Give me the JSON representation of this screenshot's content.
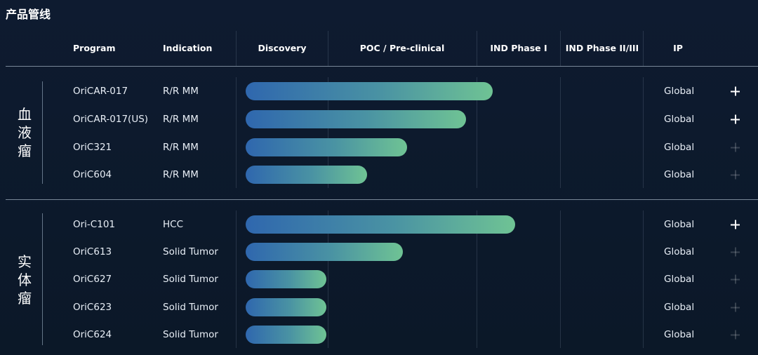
{
  "page": {
    "title": "产品管线"
  },
  "columns": {
    "program": "Program",
    "indication": "Indication",
    "discovery": "Discovery",
    "poc": "POC / Pre-clinical",
    "ind1": "IND Phase I",
    "ind23": "IND Phase II/III",
    "ip": "IP"
  },
  "groups": [
    {
      "label": "血液瘤"
    },
    {
      "label": "实体瘤"
    }
  ],
  "rows": [
    {
      "program": "OriCAR-017",
      "indication": "R/R MM",
      "ip": "Global",
      "progress": 0.55,
      "expand": "active"
    },
    {
      "program": "OriCAR-017(US)",
      "indication": "R/R MM",
      "ip": "Global",
      "progress": 0.49,
      "expand": "active"
    },
    {
      "program": "OriC321",
      "indication": "R/R MM",
      "ip": "Global",
      "progress": 0.36,
      "expand": "dim"
    },
    {
      "program": "OriC604",
      "indication": "R/R MM",
      "ip": "Global",
      "progress": 0.27,
      "expand": "dim"
    },
    {
      "program": "Ori-C101",
      "indication": "HCC",
      "ip": "Global",
      "progress": 0.6,
      "expand": "active"
    },
    {
      "program": "OriC613",
      "indication": "Solid Tumor",
      "ip": "Global",
      "progress": 0.35,
      "expand": "dim"
    },
    {
      "program": "OriC627",
      "indication": "Solid Tumor",
      "ip": "Global",
      "progress": 0.18,
      "expand": "dim"
    },
    {
      "program": "OriC623",
      "indication": "Solid Tumor",
      "ip": "Global",
      "progress": 0.18,
      "expand": "dim"
    },
    {
      "program": "OriC624",
      "indication": "Solid Tumor",
      "ip": "Global",
      "progress": 0.18,
      "expand": "dim"
    }
  ],
  "colors": {
    "bar_start": "#2f67ae",
    "bar_end": "#6fc394",
    "background": "#0e1b30"
  }
}
